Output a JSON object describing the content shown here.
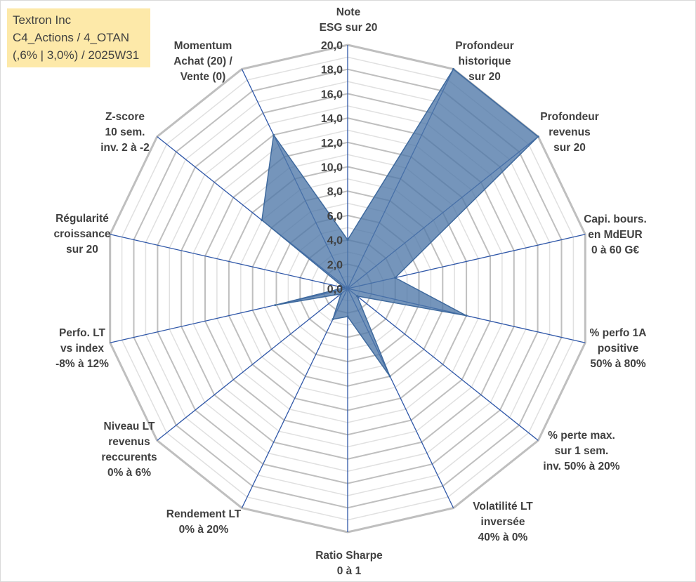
{
  "info": {
    "line1": "Textron Inc",
    "line2": "C4_Actions / 4_OTAN",
    "line3": "(,6% | 3,0%) / 2025W31"
  },
  "chart_data": {
    "type": "radar",
    "rmax": 20,
    "ticks": [
      "0,0",
      "2,0",
      "4,0",
      "6,0",
      "8,0",
      "10,0",
      "12,0",
      "14,0",
      "16,0",
      "18,0",
      "20,0"
    ],
    "axes": [
      [
        "Note",
        "ESG sur 20"
      ],
      [
        "Profondeur",
        "historique",
        "sur 20"
      ],
      [
        "Profondeur",
        "revenus",
        "sur 20"
      ],
      [
        "Capi. bours.",
        "en MdEUR",
        "0 à 60 G€"
      ],
      [
        "% perfo 1A",
        "positive",
        "50% à 80%"
      ],
      [
        "% perte max.",
        "sur 1 sem.",
        "inv. 50% à 20%"
      ],
      [
        "Volatilité LT",
        "inversée",
        "40% à 0%"
      ],
      [
        "Ratio Sharpe",
        "0 à 1"
      ],
      [
        "Rendement LT",
        "0% à 20%"
      ],
      [
        "Niveau LT",
        "revenus",
        "reccurents",
        "0% à 6%"
      ],
      [
        "Perfo. LT",
        "vs index",
        "-8% à 12%"
      ],
      [
        "Régularité",
        "croissance",
        "sur 20"
      ],
      [
        "Z-score",
        "10 sem.",
        "inv. 2 à -2"
      ],
      [
        "Momentum",
        "Achat (20) /",
        "Vente (0)"
      ]
    ],
    "values": [
      4.0,
      20.0,
      20.0,
      4.0,
      10.0,
      1.0,
      8.0,
      2.3,
      2.8,
      0.7,
      6.1,
      0.3,
      9.0,
      14.0
    ],
    "colors": {
      "fill": "#4e77a8",
      "stroke": "#3f6a9e",
      "spoke": "#2f57a8",
      "ring_major": "#bfbfbf",
      "ring_minor": "#e0e0e0"
    }
  }
}
